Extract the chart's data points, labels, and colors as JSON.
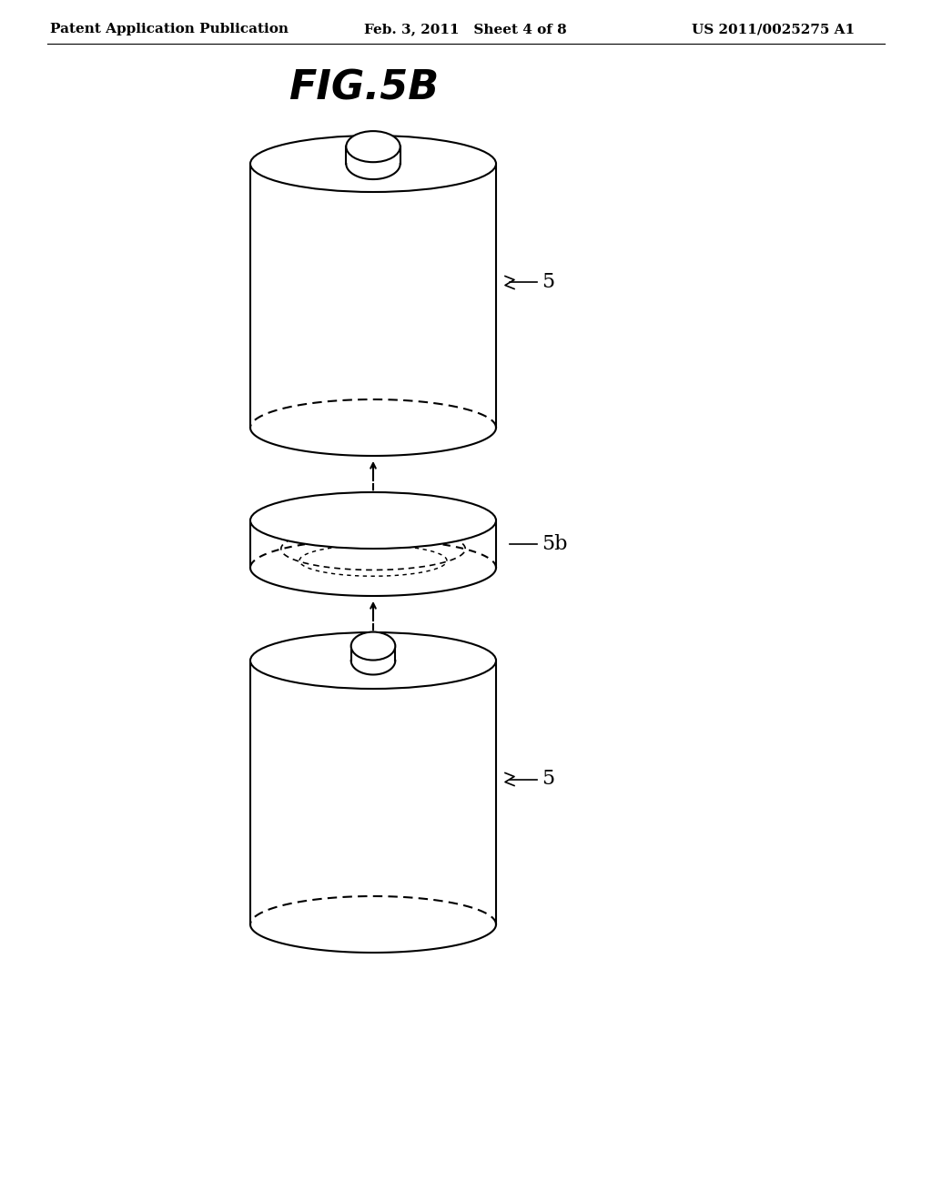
{
  "header_left": "Patent Application Publication",
  "header_mid": "Feb. 3, 2011   Sheet 4 of 8",
  "header_right": "US 2011/0025275 A1",
  "fig_title": "FIG.5B",
  "label_5b": "5b",
  "label_5_top": "5",
  "label_5_bot": "5",
  "background": "#ffffff",
  "line_color": "#000000",
  "font_size_header": 11,
  "font_size_title": 32,
  "font_size_label": 16
}
